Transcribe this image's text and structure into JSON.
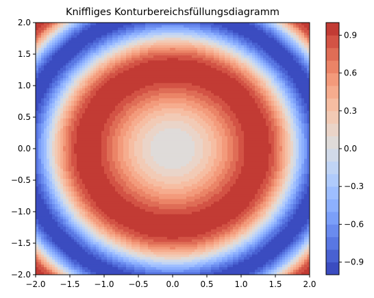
{
  "chart_data": {
    "type": "heatmap",
    "subtype": "filled-contour",
    "title": "Kniffliges Konturbereichsfüllungsdiagramm",
    "xlabel": "",
    "ylabel": "",
    "xlim": [
      -2.0,
      2.0
    ],
    "ylim": [
      -2.0,
      2.0
    ],
    "x_ticks": [
      -2.0,
      -1.5,
      -1.0,
      -0.5,
      0.0,
      0.5,
      1.0,
      1.5,
      2.0
    ],
    "x_tick_labels": [
      "−2.0",
      "−1.5",
      "−1.0",
      "−0.5",
      "0.0",
      "0.5",
      "1.0",
      "1.5",
      "2.0"
    ],
    "y_ticks": [
      -2.0,
      -1.5,
      -1.0,
      -0.5,
      0.0,
      0.5,
      1.0,
      1.5,
      2.0
    ],
    "y_tick_labels": [
      "−2.0",
      "−1.5",
      "−1.0",
      "−0.5",
      "0.0",
      "0.5",
      "1.0",
      "1.5",
      "2.0"
    ],
    "field": "z = sin(x² + y²)",
    "levels": [
      -1.0,
      -0.9,
      -0.8,
      -0.7,
      -0.6,
      -0.5,
      -0.4,
      -0.3,
      -0.2,
      -0.1,
      0.0,
      0.1,
      0.2,
      0.3,
      0.4,
      0.5,
      0.6,
      0.7,
      0.8,
      0.9,
      1.0
    ],
    "colormap": "coolwarm",
    "colorbar": {
      "range": [
        -1.0,
        1.0
      ],
      "ticks": [
        -0.9,
        -0.6,
        -0.3,
        0.0,
        0.3,
        0.6,
        0.9
      ],
      "tick_labels": [
        "−0.9",
        "−0.6",
        "−0.3",
        "0.0",
        "0.3",
        "0.6",
        "0.9"
      ],
      "placement": "right"
    },
    "band_colors": [
      "#3b4cc0",
      "#4961d2",
      "#5977e3",
      "#6a8bef",
      "#7b9ff9",
      "#8db0fe",
      "#9ebeff",
      "#b0cbfc",
      "#c0d4f5",
      "#d1dae9",
      "#dfdbd9",
      "#ead4c8",
      "#f2cab5",
      "#f6bda2",
      "#f6ac8e",
      "#f39a7b",
      "#eb8467",
      "#df6d56",
      "#d35345",
      "#c23b34"
    ],
    "grid": false,
    "legend": "none"
  }
}
